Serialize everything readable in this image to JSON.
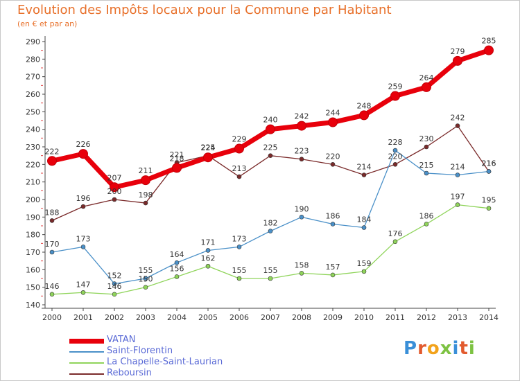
{
  "title": "Evolution des Impôts locaux pour la Commune par Habitant",
  "subtitle": "(en € et par an)",
  "logo": "Proxiti",
  "chart_data": {
    "type": "line",
    "x": [
      "2000",
      "2001",
      "2002",
      "2003",
      "2004",
      "2005",
      "2006",
      "2007",
      "2008",
      "2009",
      "2010",
      "2011",
      "2012",
      "2013",
      "2014"
    ],
    "ylim": [
      140,
      290
    ],
    "yticks": [
      140,
      150,
      160,
      170,
      180,
      190,
      200,
      210,
      220,
      230,
      240,
      250,
      260,
      270,
      280,
      290
    ],
    "grid": false,
    "legend_position": "bottom-left",
    "series": [
      {
        "name": "VATAN",
        "color": "#e8000b",
        "values": [
          222,
          226,
          207,
          211,
          218,
          224,
          229,
          240,
          242,
          244,
          248,
          259,
          264,
          279,
          285
        ]
      },
      {
        "name": "Saint-Florentin",
        "color": "#4a90c8",
        "values": [
          170,
          173,
          152,
          155,
          164,
          171,
          173,
          182,
          190,
          186,
          184,
          228,
          215,
          214,
          216
        ]
      },
      {
        "name": "La Chapelle-Saint-Laurian",
        "color": "#8fd45a",
        "values": [
          146,
          147,
          146,
          150,
          156,
          162,
          155,
          155,
          158,
          157,
          159,
          176,
          186,
          197,
          195
        ]
      },
      {
        "name": "Reboursin",
        "color": "#7a2a2a",
        "values": [
          188,
          196,
          200,
          198,
          221,
          225,
          213,
          225,
          223,
          220,
          214,
          220,
          230,
          242,
          216
        ]
      }
    ]
  }
}
